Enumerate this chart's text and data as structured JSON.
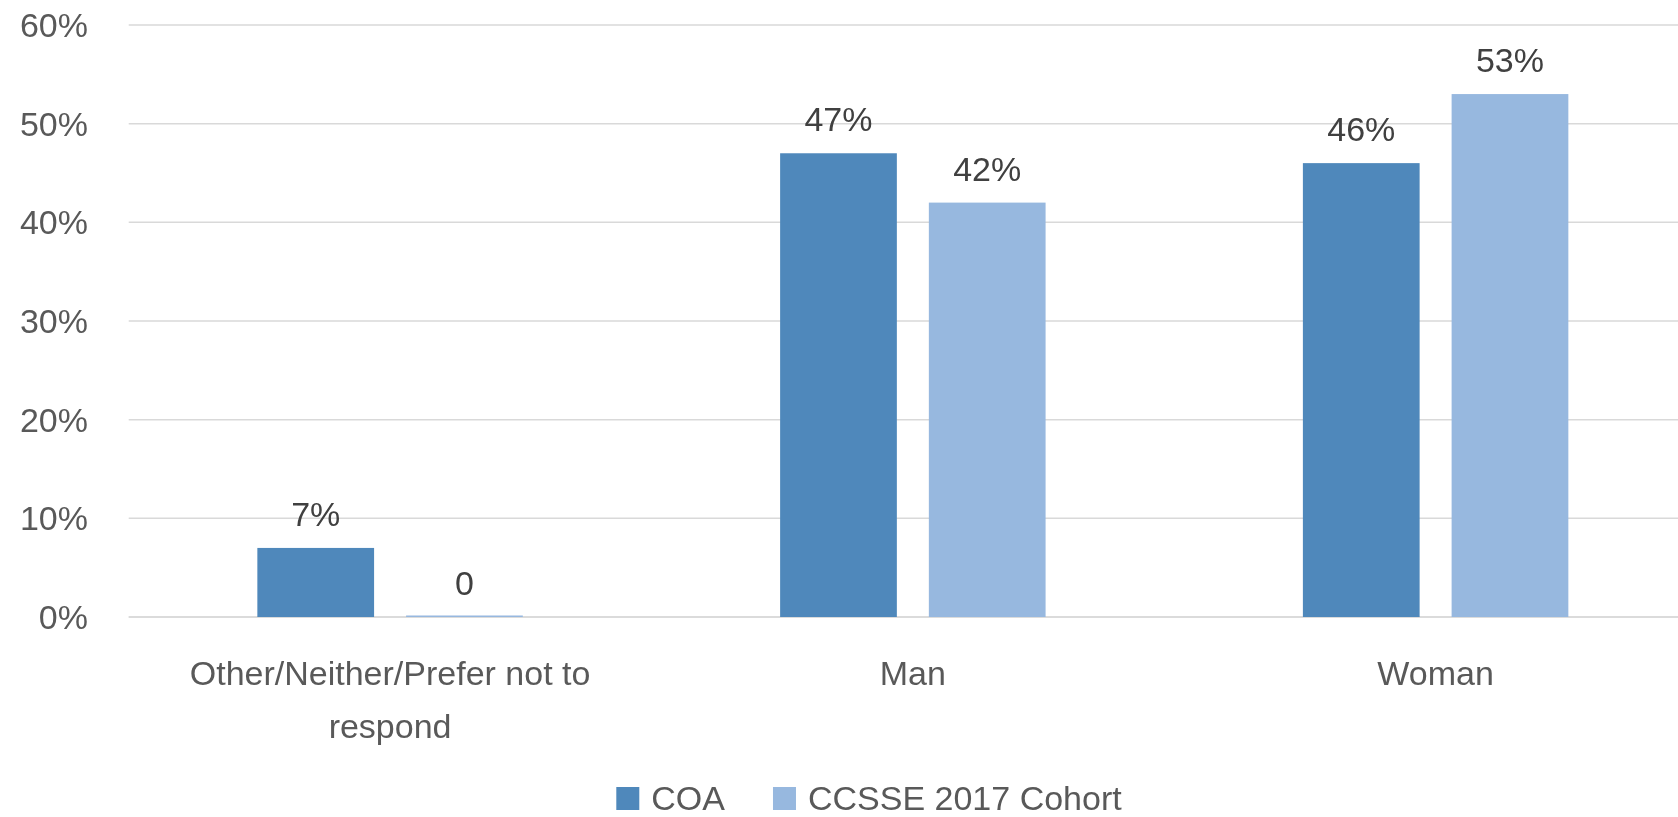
{
  "chart_data": {
    "type": "bar",
    "categories": [
      "Other/Neither/Prefer not to respond",
      "Man",
      "Woman"
    ],
    "series": [
      {
        "name": "COA",
        "color": "#4f88bb",
        "values": [
          7,
          47,
          46
        ],
        "value_labels": [
          "7%",
          "47%",
          "46%"
        ]
      },
      {
        "name": "CCSSE 2017 Cohort",
        "color": "#97b8df",
        "values": [
          0,
          42,
          53
        ],
        "value_labels": [
          "0",
          "42%",
          "53%"
        ]
      }
    ],
    "ylim": [
      0,
      60
    ],
    "yticks": [
      {
        "value": 0,
        "label": "0%"
      },
      {
        "value": 10,
        "label": "10%"
      },
      {
        "value": 20,
        "label": "20%"
      },
      {
        "value": 30,
        "label": "30%"
      },
      {
        "value": 40,
        "label": "40%"
      },
      {
        "value": 50,
        "label": "50%"
      },
      {
        "value": 60,
        "label": "60%"
      }
    ],
    "grid": "y",
    "legend": "bottom"
  }
}
